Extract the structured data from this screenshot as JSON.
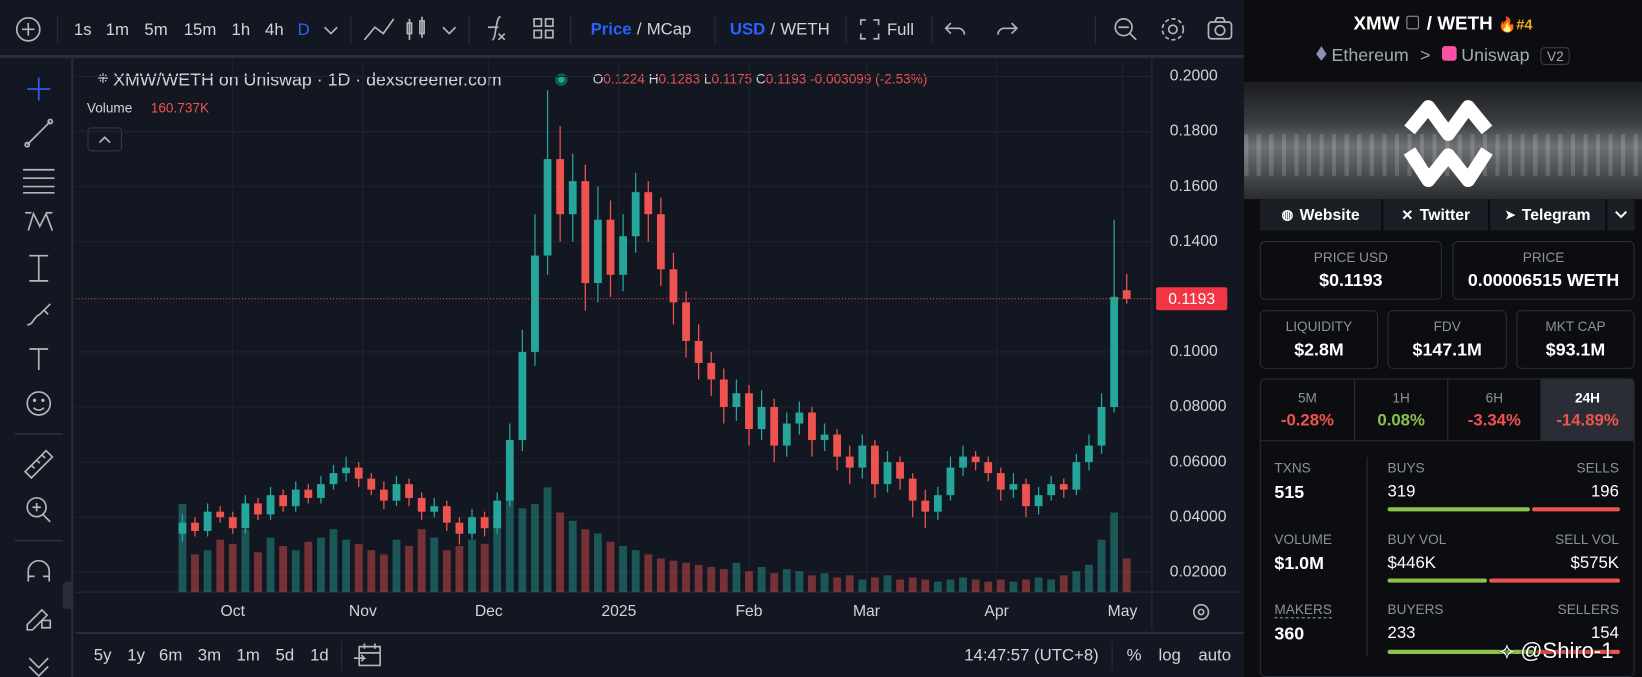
{
  "toolbar": {
    "intervals": [
      "1s",
      "1m",
      "5m",
      "15m",
      "1h",
      "4h",
      "D"
    ],
    "price_toggle": [
      "Price",
      "/",
      "MCap"
    ],
    "currency_toggle": [
      "USD",
      "/",
      "WETH"
    ],
    "full": "Full"
  },
  "chart_data": {
    "type": "candlestick",
    "title": "XMW/WETH on Uniswap · 1D · dexscreener.com",
    "legend": {
      "o_label": "O",
      "open": 0.1224,
      "h_label": "H",
      "high": 0.1283,
      "l_label": "L",
      "low": 0.1175,
      "c_label": "C",
      "close": 0.1193,
      "change": -0.003099,
      "change_pct": "(-2.53%)"
    },
    "volume_label": "Volume",
    "volume_value": "160.737K",
    "xlim": [
      -37.5,
      219
    ],
    "ylim": [
      0.0128,
      0.2057
    ],
    "vlim": [
      0,
      500
    ],
    "grid": true,
    "xticks": [
      {
        "value": 0,
        "label": "Oct"
      },
      {
        "value": 31,
        "label": "Nov"
      },
      {
        "value": 61,
        "label": "Dec"
      },
      {
        "value": 92,
        "label": "2025"
      },
      {
        "value": 123,
        "label": "Feb"
      },
      {
        "value": 151,
        "label": "Mar"
      },
      {
        "value": 182,
        "label": "Apr"
      },
      {
        "value": 212,
        "label": "May"
      }
    ],
    "yticks": [
      {
        "value": 0.2,
        "label": "0.2000"
      },
      {
        "value": 0.18,
        "label": "0.1800"
      },
      {
        "value": 0.16,
        "label": "0.1600"
      },
      {
        "value": 0.14,
        "label": "0.1400"
      },
      {
        "value": 0.1,
        "label": "0.1000"
      },
      {
        "value": 0.08,
        "label": "0.08000"
      },
      {
        "value": 0.06,
        "label": "0.06000"
      },
      {
        "value": 0.04,
        "label": "0.04000"
      },
      {
        "value": 0.02,
        "label": "0.02000"
      }
    ],
    "up_color": "#26a69a",
    "down_color": "#ef5350",
    "last_price": 0.1193,
    "x": [
      -12,
      -9,
      -6,
      -3,
      0,
      3,
      6,
      9,
      12,
      15,
      18,
      21,
      24,
      27,
      30,
      33,
      36,
      39,
      42,
      45,
      48,
      51,
      54,
      57,
      60,
      63,
      66,
      69,
      72,
      75,
      78,
      81,
      84,
      87,
      90,
      93,
      96,
      99,
      102,
      105,
      108,
      111,
      114,
      117,
      120,
      123,
      126,
      129,
      132,
      135,
      138,
      141,
      144,
      147,
      150,
      153,
      156,
      159,
      162,
      165,
      168,
      171,
      174,
      177,
      180,
      183,
      186,
      189,
      192,
      195,
      198,
      201,
      204,
      207,
      210,
      213
    ],
    "open": [
      0.034,
      0.038,
      0.035,
      0.042,
      0.04,
      0.036,
      0.045,
      0.041,
      0.048,
      0.044,
      0.05,
      0.047,
      0.052,
      0.056,
      0.058,
      0.054,
      0.05,
      0.046,
      0.052,
      0.047,
      0.042,
      0.044,
      0.038,
      0.034,
      0.04,
      0.036,
      0.046,
      0.068,
      0.1,
      0.135,
      0.17,
      0.15,
      0.162,
      0.125,
      0.148,
      0.128,
      0.142,
      0.158,
      0.15,
      0.13,
      0.118,
      0.104,
      0.096,
      0.09,
      0.08,
      0.085,
      0.072,
      0.08,
      0.066,
      0.074,
      0.078,
      0.068,
      0.07,
      0.062,
      0.058,
      0.066,
      0.052,
      0.06,
      0.054,
      0.046,
      0.042,
      0.048,
      0.058,
      0.062,
      0.06,
      0.056,
      0.05,
      0.052,
      0.044,
      0.048,
      0.052,
      0.05,
      0.06,
      0.066,
      0.08,
      0.1224
    ],
    "high": [
      0.041,
      0.04,
      0.045,
      0.044,
      0.042,
      0.048,
      0.047,
      0.051,
      0.05,
      0.053,
      0.052,
      0.055,
      0.059,
      0.062,
      0.06,
      0.056,
      0.053,
      0.055,
      0.054,
      0.049,
      0.047,
      0.046,
      0.04,
      0.043,
      0.042,
      0.049,
      0.074,
      0.108,
      0.15,
      0.195,
      0.182,
      0.172,
      0.168,
      0.16,
      0.155,
      0.15,
      0.165,
      0.162,
      0.156,
      0.136,
      0.122,
      0.11,
      0.1,
      0.094,
      0.09,
      0.088,
      0.086,
      0.083,
      0.078,
      0.082,
      0.08,
      0.074,
      0.072,
      0.066,
      0.07,
      0.068,
      0.064,
      0.062,
      0.056,
      0.05,
      0.051,
      0.062,
      0.066,
      0.064,
      0.062,
      0.058,
      0.056,
      0.054,
      0.051,
      0.055,
      0.054,
      0.063,
      0.07,
      0.085,
      0.148,
      0.1283
    ],
    "low": [
      0.031,
      0.033,
      0.033,
      0.038,
      0.034,
      0.034,
      0.039,
      0.039,
      0.042,
      0.042,
      0.045,
      0.045,
      0.05,
      0.053,
      0.051,
      0.048,
      0.043,
      0.044,
      0.044,
      0.039,
      0.04,
      0.035,
      0.03,
      0.032,
      0.033,
      0.034,
      0.044,
      0.064,
      0.095,
      0.128,
      0.14,
      0.14,
      0.115,
      0.118,
      0.12,
      0.122,
      0.136,
      0.14,
      0.124,
      0.11,
      0.098,
      0.09,
      0.084,
      0.074,
      0.075,
      0.066,
      0.068,
      0.06,
      0.062,
      0.07,
      0.062,
      0.064,
      0.057,
      0.052,
      0.054,
      0.047,
      0.049,
      0.05,
      0.04,
      0.036,
      0.039,
      0.046,
      0.055,
      0.057,
      0.053,
      0.046,
      0.047,
      0.04,
      0.041,
      0.046,
      0.047,
      0.048,
      0.057,
      0.063,
      0.078,
      0.1175
    ],
    "close": [
      0.038,
      0.035,
      0.042,
      0.04,
      0.036,
      0.045,
      0.041,
      0.048,
      0.044,
      0.05,
      0.047,
      0.052,
      0.056,
      0.058,
      0.054,
      0.05,
      0.046,
      0.052,
      0.047,
      0.042,
      0.044,
      0.038,
      0.034,
      0.04,
      0.036,
      0.046,
      0.068,
      0.1,
      0.135,
      0.17,
      0.15,
      0.162,
      0.125,
      0.148,
      0.128,
      0.142,
      0.158,
      0.15,
      0.13,
      0.118,
      0.104,
      0.096,
      0.09,
      0.08,
      0.085,
      0.072,
      0.08,
      0.066,
      0.074,
      0.078,
      0.068,
      0.07,
      0.062,
      0.058,
      0.066,
      0.052,
      0.06,
      0.054,
      0.046,
      0.042,
      0.048,
      0.058,
      0.062,
      0.06,
      0.056,
      0.05,
      0.052,
      0.044,
      0.048,
      0.052,
      0.05,
      0.06,
      0.066,
      0.08,
      0.12,
      0.1193
    ],
    "volume": [
      420,
      180,
      200,
      250,
      230,
      300,
      190,
      260,
      220,
      200,
      240,
      260,
      300,
      250,
      230,
      200,
      180,
      250,
      220,
      300,
      260,
      200,
      220,
      250,
      230,
      350,
      480,
      400,
      420,
      500,
      380,
      340,
      300,
      280,
      240,
      220,
      200,
      180,
      160,
      150,
      140,
      130,
      120,
      110,
      140,
      100,
      120,
      90,
      110,
      100,
      80,
      90,
      70,
      80,
      60,
      70,
      80,
      60,
      70,
      60,
      50,
      60,
      70,
      60,
      50,
      60,
      50,
      60,
      70,
      60,
      80,
      100,
      130,
      250,
      380,
      160.737
    ]
  },
  "bottom_bar": {
    "ranges": [
      "5y",
      "1y",
      "6m",
      "3m",
      "1m",
      "5d",
      "1d"
    ],
    "time": "14:47:57 (UTC+8)",
    "scale": [
      "%",
      "log",
      "auto"
    ]
  },
  "panel": {
    "pair": [
      "XMW",
      "/ WETH"
    ],
    "rank": "#4",
    "chain": "Ethereum",
    "sep": ">",
    "dex": "Uniswap",
    "version": "V2",
    "links": [
      "Website",
      "Twitter",
      "Telegram"
    ],
    "stats": [
      {
        "label": "PRICE USD",
        "value": "$0.1193"
      },
      {
        "label": "PRICE",
        "value": "0.00006515 WETH"
      },
      {
        "label": "LIQUIDITY",
        "value": "$2.8M"
      },
      {
        "label": "FDV",
        "value": "$147.1M"
      },
      {
        "label": "MKT CAP",
        "value": "$93.1M"
      }
    ],
    "changes": [
      {
        "label": "5M",
        "value": "-0.28%"
      },
      {
        "label": "1H",
        "value": "0.08%"
      },
      {
        "label": "6H",
        "value": "-3.34%"
      },
      {
        "label": "24H",
        "value": "-14.89%"
      }
    ],
    "txns": {
      "label": "TXNS",
      "value": "515"
    },
    "buys": {
      "label": "BUYS",
      "value": "319"
    },
    "sells": {
      "label": "SELLS",
      "value": "196"
    },
    "volume": {
      "label": "VOLUME",
      "value": "$1.0M"
    },
    "buy_vol": {
      "label": "BUY VOL",
      "value": "$446K"
    },
    "sell_vol": {
      "label": "SELL VOL",
      "value": "$575K"
    },
    "makers": {
      "label": "MAKERS",
      "value": "360"
    },
    "buyers": {
      "label": "BUYERS",
      "value": "233"
    },
    "sellers": {
      "label": "SELLERS",
      "value": "154"
    }
  },
  "watermark": "@Shiro-1"
}
